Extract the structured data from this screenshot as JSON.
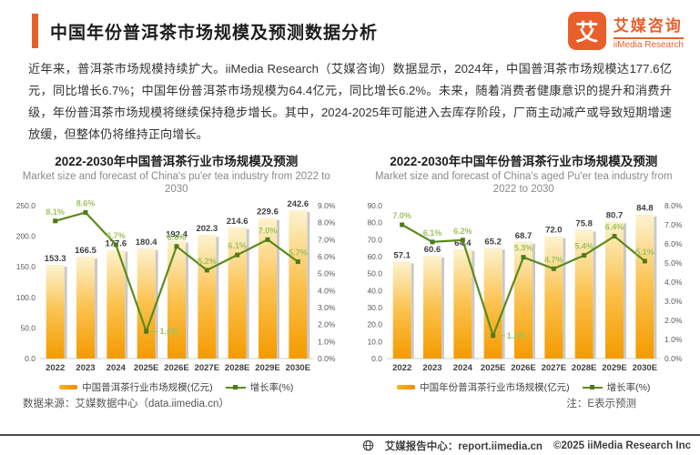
{
  "header": {
    "title": "中国年份普洱茶市场规模及预测数据分析",
    "logo": {
      "glyph": "艾",
      "name_cn": "艾媒咨询",
      "name_en": "iiMedia Research"
    }
  },
  "intro": {
    "text": "近年来，普洱茶市场规模持续扩大。iiMedia Research（艾媒咨询）数据显示，2024年，中国普洱茶市场规模达177.6亿元，同比增长6.7%；中国年份普洱茶市场规模为64.4亿元，同比增长6.2%。未来，随着消费者健康意识的提升和消费升级，年份普洱茶市场规模将继续保持稳步增长。其中，2024-2025年可能进入去库存阶段，厂商主动减产或导致短期增速放缓，但整体仍将维持正向增长。"
  },
  "chart_data": [
    {
      "type": "combo-bar-line",
      "title": "2022-2030年中国普洱茶行业市场规模及预测",
      "subtitle": "Market size and forecast of China's pu'er tea industry from 2022 to 2030",
      "categories": [
        "2022",
        "2023",
        "2024",
        "2025E",
        "2026E",
        "2027E",
        "2028E",
        "2029E",
        "2030E"
      ],
      "series": [
        {
          "name": "中国普洱茶行业市场规模(亿元)",
          "type": "bar",
          "axis": "left",
          "values": [
            153.3,
            166.5,
            177.6,
            180.4,
            192.4,
            202.3,
            214.6,
            229.6,
            242.6
          ]
        },
        {
          "name": "增长率(%)",
          "type": "line",
          "axis": "right",
          "values": [
            8.1,
            8.6,
            6.7,
            1.6,
            6.6,
            5.2,
            6.1,
            7.0,
            5.7
          ]
        }
      ],
      "left_axis": {
        "min": 0,
        "max": 250,
        "step": 50
      },
      "right_axis": {
        "min": 0,
        "max": 9,
        "step": 1
      },
      "grid": false,
      "legend_position": "bottom"
    },
    {
      "type": "combo-bar-line",
      "title": "2022-2030年中国年份普洱茶行业市场规模及预测",
      "subtitle": "Market size and forecast of China's aged Pu'er tea industry from 2022 to 2030",
      "categories": [
        "2022",
        "2023",
        "2024",
        "2025E",
        "2026E",
        "2027E",
        "2028E",
        "2029E",
        "2030E"
      ],
      "series": [
        {
          "name": "中国年份普洱茶行业市场规模(亿元)",
          "type": "bar",
          "axis": "left",
          "values": [
            57.1,
            60.6,
            64.4,
            65.2,
            68.7,
            72.0,
            75.8,
            80.7,
            84.8
          ]
        },
        {
          "name": "增长率(%)",
          "type": "line",
          "axis": "right",
          "values": [
            7.0,
            6.1,
            6.2,
            1.2,
            5.3,
            4.7,
            5.4,
            6.4,
            5.1
          ]
        }
      ],
      "left_axis": {
        "min": 0,
        "max": 90,
        "step": 10
      },
      "right_axis": {
        "min": 0,
        "max": 8,
        "step": 1
      },
      "grid": false,
      "legend_position": "bottom"
    }
  ],
  "footnotes": {
    "source": "数据来源：艾媒数据中心（data.iimedia.cn）",
    "note": "注：E表示预测"
  },
  "footer": {
    "center": "艾媒报告中心：report.iimedia.cn",
    "copyright": "©2025  iiMedia Research Inc"
  },
  "theme": {
    "brand_orange": "#E95F2C",
    "bar_top": "#FDF3D0",
    "bar_mid": "#FBC24E",
    "bar_bottom": "#F49B00",
    "bar_shadow": "#C9C9C9",
    "line_green": "#5C8A1E",
    "marker_green": "#4F7A1A",
    "pct_label_green": "#9EC45F",
    "axis_line": "#CFCFCF"
  }
}
